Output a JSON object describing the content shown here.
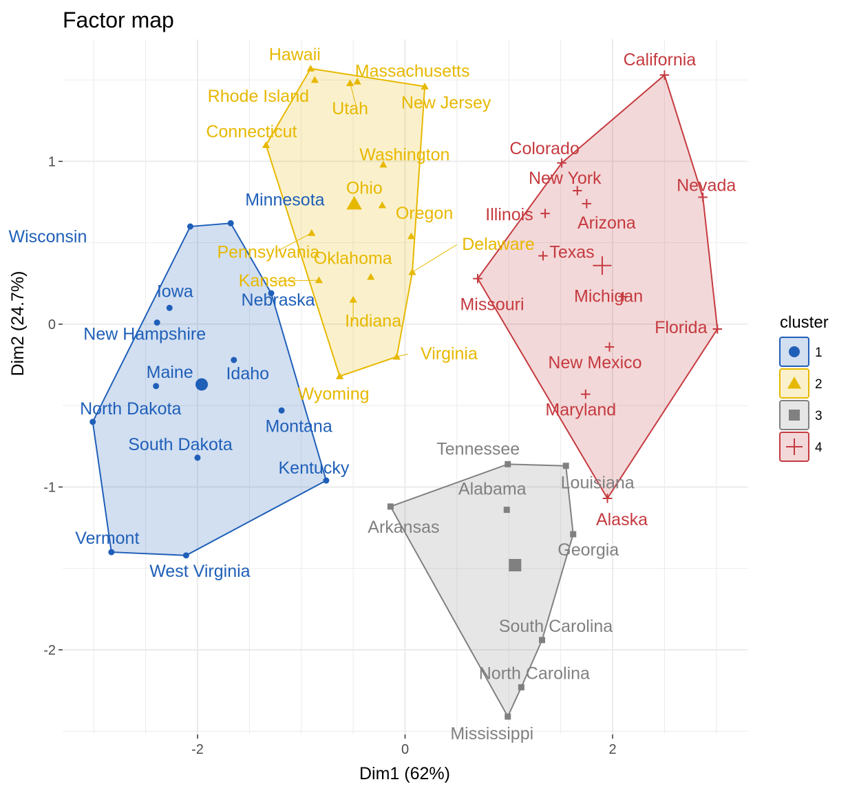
{
  "chart_data": {
    "type": "scatter",
    "title": "Factor map",
    "xlabel": "Dim1 (62%)",
    "ylabel": "Dim2 (24.7%)",
    "xlim": [
      -3.3,
      3.3
    ],
    "ylim": [
      -2.52,
      1.75
    ],
    "x_ticks": [
      -2,
      0,
      2
    ],
    "y_ticks": [
      1,
      0,
      -1,
      -2
    ],
    "grid": true,
    "legend": {
      "title": "cluster",
      "position": "right"
    },
    "clusters": [
      {
        "name": "1",
        "color": "#1F5FB8",
        "fill": "rgba(31,95,184,0.2)",
        "shape": "circle",
        "centroid": [
          -1.96,
          -0.37
        ],
        "hull": [
          "Minnesota",
          "Nebraska",
          "Kentucky",
          "West Virginia",
          "Vermont",
          "North Dakota",
          "Wisconsin"
        ],
        "points": [
          {
            "name": "Minnesota",
            "x": -1.68,
            "y": 0.62
          },
          {
            "name": "Wisconsin",
            "x": -2.07,
            "y": 0.6
          },
          {
            "name": "Iowa",
            "x": -2.27,
            "y": 0.1
          },
          {
            "name": "New Hampshire",
            "x": -2.39,
            "y": 0.01
          },
          {
            "name": "Nebraska",
            "x": -1.29,
            "y": 0.19
          },
          {
            "name": "Idaho",
            "x": -1.65,
            "y": -0.22
          },
          {
            "name": "Maine",
            "x": -2.4,
            "y": -0.38
          },
          {
            "name": "Montana",
            "x": -1.19,
            "y": -0.53
          },
          {
            "name": "North Dakota",
            "x": -3.01,
            "y": -0.6
          },
          {
            "name": "South Dakota",
            "x": -2.0,
            "y": -0.82
          },
          {
            "name": "Kentucky",
            "x": -0.76,
            "y": -0.96
          },
          {
            "name": "Vermont",
            "x": -2.83,
            "y": -1.4
          },
          {
            "name": "West Virginia",
            "x": -2.11,
            "y": -1.42
          }
        ]
      },
      {
        "name": "2",
        "color": "#E7B800",
        "fill": "rgba(231,184,0,0.2)",
        "shape": "triangle",
        "centroid": [
          -0.49,
          0.74
        ],
        "hull": [
          "Hawaii",
          "New Jersey",
          "Delaware",
          "Virginia",
          "Wyoming",
          "Connecticut"
        ],
        "points": [
          {
            "name": "Hawaii",
            "x": -0.91,
            "y": 1.57
          },
          {
            "name": "Rhode Island",
            "x": -0.87,
            "y": 1.5
          },
          {
            "name": "Massachusetts",
            "x": -0.46,
            "y": 1.49
          },
          {
            "name": "Utah",
            "x": -0.53,
            "y": 1.48
          },
          {
            "name": "New Jersey",
            "x": 0.19,
            "y": 1.46
          },
          {
            "name": "Connecticut",
            "x": -1.34,
            "y": 1.1
          },
          {
            "name": "Washington",
            "x": -0.21,
            "y": 0.98
          },
          {
            "name": "Ohio",
            "x": -0.22,
            "y": 0.73
          },
          {
            "name": "Oregon",
            "x": 0.06,
            "y": 0.54
          },
          {
            "name": "Pennsylvania",
            "x": -0.9,
            "y": 0.56
          },
          {
            "name": "Delaware",
            "x": 0.07,
            "y": 0.32
          },
          {
            "name": "Oklahoma",
            "x": -0.33,
            "y": 0.29
          },
          {
            "name": "Kansas",
            "x": -0.83,
            "y": 0.27
          },
          {
            "name": "Indiana",
            "x": -0.5,
            "y": 0.15
          },
          {
            "name": "Virginia",
            "x": -0.08,
            "y": -0.2
          },
          {
            "name": "Wyoming",
            "x": -0.63,
            "y": -0.32
          }
        ]
      },
      {
        "name": "3",
        "color": "#808080",
        "fill": "rgba(128,128,128,0.2)",
        "shape": "square",
        "centroid": [
          1.06,
          -1.48
        ],
        "hull": [
          "Tennessee",
          "Louisiana",
          "Georgia",
          "South Carolina",
          "North Carolina",
          "Mississippi",
          "Arkansas"
        ],
        "points": [
          {
            "name": "Tennessee",
            "x": 0.99,
            "y": -0.86
          },
          {
            "name": "Louisiana",
            "x": 1.55,
            "y": -0.87
          },
          {
            "name": "Alabama",
            "x": 0.98,
            "y": -1.14
          },
          {
            "name": "Arkansas",
            "x": -0.14,
            "y": -1.12
          },
          {
            "name": "Georgia",
            "x": 1.62,
            "y": -1.29
          },
          {
            "name": "South Carolina",
            "x": 1.32,
            "y": -1.94
          },
          {
            "name": "North Carolina",
            "x": 1.12,
            "y": -2.23
          },
          {
            "name": "Mississippi",
            "x": 0.99,
            "y": -2.41
          }
        ]
      },
      {
        "name": "4",
        "color": "#C53A3F",
        "fill": "rgba(197,58,63,0.2)",
        "shape": "plus",
        "centroid": [
          1.9,
          0.36
        ],
        "hull": [
          "California",
          "Nevada",
          "Florida",
          "Alaska",
          "Missouri",
          "Colorado"
        ],
        "points": [
          {
            "name": "California",
            "x": 2.5,
            "y": 1.53
          },
          {
            "name": "Colorado",
            "x": 1.51,
            "y": 0.99
          },
          {
            "name": "New York",
            "x": 1.66,
            "y": 0.82
          },
          {
            "name": "Nevada",
            "x": 2.87,
            "y": 0.78
          },
          {
            "name": "Arizona",
            "x": 1.75,
            "y": 0.74
          },
          {
            "name": "Illinois",
            "x": 1.35,
            "y": 0.68
          },
          {
            "name": "Texas",
            "x": 1.33,
            "y": 0.42
          },
          {
            "name": "Michigan",
            "x": 2.1,
            "y": 0.17
          },
          {
            "name": "Missouri",
            "x": 0.7,
            "y": 0.28
          },
          {
            "name": "Florida",
            "x": 3.01,
            "y": -0.03
          },
          {
            "name": "New Mexico",
            "x": 1.97,
            "y": -0.14
          },
          {
            "name": "Maryland",
            "x": 1.74,
            "y": -0.43
          },
          {
            "name": "Alaska",
            "x": 1.95,
            "y": -1.07
          }
        ]
      }
    ]
  }
}
